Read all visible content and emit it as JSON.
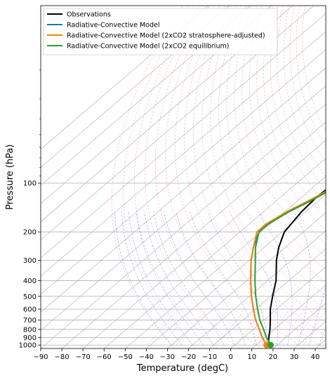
{
  "chart_data": {
    "type": "line",
    "subtype": "skew-T log-p diagram",
    "xlabel": "Temperature (degC)",
    "ylabel": "Pressure (hPa)",
    "xlim": [
      -90,
      45
    ],
    "ylim_hPa": [
      1050,
      8
    ],
    "y_scale": "log",
    "y_direction": "inverted",
    "grid": "horizontal lines at labeled pressures",
    "legend_position": "upper-left",
    "x_ticks": [
      "−90",
      "−80",
      "−70",
      "−60",
      "−50",
      "−40",
      "−30",
      "−20",
      "−10",
      "0",
      "10",
      "20",
      "30",
      "40"
    ],
    "x_tick_values": [
      -90,
      -80,
      -70,
      -60,
      -50,
      -40,
      -30,
      -20,
      -10,
      0,
      10,
      20,
      30,
      40
    ],
    "y_ticks": [
      "100",
      "200",
      "300",
      "400",
      "500",
      "600",
      "700",
      "800",
      "900",
      "1000"
    ],
    "y_tick_values": [
      100,
      200,
      300,
      400,
      500,
      600,
      700,
      800,
      900,
      1000
    ],
    "background_lines": [
      {
        "kind": "isotherms (skewed)",
        "color": "#aaaaaa",
        "style": "solid"
      },
      {
        "kind": "dry adiabats",
        "color": "#ff9999",
        "style": "dashed"
      },
      {
        "kind": "moist adiabats",
        "color": "#7777ff",
        "style": "dashed"
      },
      {
        "kind": "mixing ratio",
        "color": "#aa55aa",
        "style": "dotted"
      }
    ],
    "series": [
      {
        "name": "Observations",
        "color": "#000000",
        "pressure": [
          1000,
          900,
          800,
          700,
          600,
          500,
          400,
          300,
          250,
          200,
          150,
          120,
          100,
          80,
          60,
          40,
          25,
          15,
          10
        ],
        "temperature": [
          16,
          12,
          8,
          3,
          -3,
          -9,
          -16,
          -27,
          -33,
          -39,
          -42,
          -43,
          -42,
          -38,
          -34,
          -30,
          -26,
          -22,
          -20
        ]
      },
      {
        "name": "Radiative-Convective Model",
        "color": "#1f77b4",
        "pressure": [
          1000,
          900,
          800,
          700,
          600,
          500,
          400,
          300,
          250,
          200,
          180,
          150,
          130,
          100,
          80,
          60,
          40,
          25,
          15,
          10
        ],
        "temperature": [
          15,
          9,
          3,
          -4,
          -11,
          -19,
          -28,
          -39,
          -45,
          -51,
          -51,
          -48,
          -44,
          -38,
          -36,
          -34,
          -32,
          -30,
          -29,
          -28
        ]
      },
      {
        "name": "Radiative-Convective Model (2xCO2 stratosphere-adjusted)",
        "color": "#ff7f0e",
        "pressure": [
          1000,
          900,
          800,
          700,
          600,
          500,
          400,
          300,
          250,
          200,
          180,
          150,
          130,
          100,
          80,
          60,
          40,
          25,
          15,
          10
        ],
        "temperature": [
          15,
          9,
          3,
          -4,
          -11,
          -19,
          -28,
          -39,
          -45,
          -52,
          -52,
          -49,
          -45,
          -39,
          -37,
          -35,
          -34,
          -33,
          -33,
          -34
        ]
      },
      {
        "name": "Radiative-Convective Model (2xCO2 equilibrium)",
        "color": "#2ca02c",
        "pressure": [
          1000,
          900,
          800,
          700,
          600,
          500,
          400,
          300,
          250,
          200,
          180,
          150,
          130,
          100,
          80,
          60,
          40,
          25,
          15,
          10
        ],
        "temperature": [
          17,
          11,
          5,
          -2,
          -9,
          -17,
          -26,
          -37,
          -44,
          -51,
          -51,
          -48,
          -44,
          -38,
          -36,
          -34,
          -33,
          -32,
          -32,
          -33
        ]
      }
    ],
    "surface_markers": [
      {
        "series": "Radiative-Convective Model (2xCO2 stratosphere-adjusted)",
        "pressure": 1000,
        "temperature": 15
      },
      {
        "series": "Radiative-Convective Model (2xCO2 equilibrium)",
        "pressure": 1000,
        "temperature": 17
      }
    ]
  }
}
